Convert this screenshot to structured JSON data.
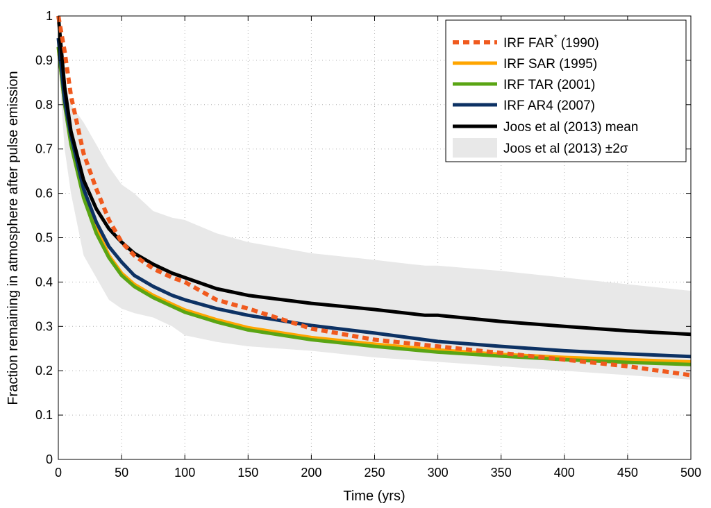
{
  "chart_data": {
    "type": "line",
    "xlabel": "Time (yrs)",
    "ylabel": "Fraction remaining in atmosphere after pulse emission",
    "xlim": [
      0,
      500
    ],
    "ylim": [
      0,
      1
    ],
    "x_ticks": [
      "0",
      "50",
      "100",
      "150",
      "200",
      "250",
      "300",
      "350",
      "400",
      "450",
      "500"
    ],
    "y_ticks": [
      "0",
      "0.1",
      "0.2",
      "0.3",
      "0.4",
      "0.5",
      "0.6",
      "0.7",
      "0.8",
      "0.9",
      "1"
    ],
    "grid": true,
    "legend_position": "top-right",
    "band": {
      "name": "Joos et al (2013) ±2σ",
      "color": "#e8e8e8",
      "upper": [
        [
          0,
          1.0
        ],
        [
          5,
          0.85
        ],
        [
          10,
          0.8
        ],
        [
          20,
          0.76
        ],
        [
          30,
          0.71
        ],
        [
          40,
          0.66
        ],
        [
          50,
          0.62
        ],
        [
          60,
          0.6
        ],
        [
          75,
          0.56
        ],
        [
          90,
          0.545
        ],
        [
          100,
          0.54
        ],
        [
          125,
          0.51
        ],
        [
          150,
          0.49
        ],
        [
          200,
          0.465
        ],
        [
          250,
          0.45
        ],
        [
          280,
          0.44
        ],
        [
          290,
          0.437
        ],
        [
          300,
          0.437
        ],
        [
          350,
          0.425
        ],
        [
          400,
          0.41
        ],
        [
          450,
          0.395
        ],
        [
          500,
          0.38
        ]
      ],
      "lower": [
        [
          0,
          0.9
        ],
        [
          5,
          0.7
        ],
        [
          10,
          0.6
        ],
        [
          20,
          0.46
        ],
        [
          30,
          0.41
        ],
        [
          40,
          0.36
        ],
        [
          50,
          0.34
        ],
        [
          60,
          0.33
        ],
        [
          75,
          0.32
        ],
        [
          90,
          0.3
        ],
        [
          100,
          0.28
        ],
        [
          125,
          0.265
        ],
        [
          150,
          0.255
        ],
        [
          200,
          0.245
        ],
        [
          250,
          0.23
        ],
        [
          300,
          0.22
        ],
        [
          350,
          0.21
        ],
        [
          400,
          0.2
        ],
        [
          450,
          0.19
        ],
        [
          500,
          0.18
        ]
      ]
    },
    "series": [
      {
        "name": "IRF FAR* (1990)",
        "legend_main": "IRF FAR",
        "legend_sup": "*",
        "legend_tail": " (1990)",
        "color": "#f05a1e",
        "dashed": true,
        "points": [
          [
            0,
            1.0
          ],
          [
            5,
            0.92
          ],
          [
            10,
            0.82
          ],
          [
            20,
            0.69
          ],
          [
            30,
            0.61
          ],
          [
            40,
            0.54
          ],
          [
            50,
            0.49
          ],
          [
            60,
            0.46
          ],
          [
            75,
            0.43
          ],
          [
            90,
            0.41
          ],
          [
            100,
            0.4
          ],
          [
            125,
            0.36
          ],
          [
            150,
            0.34
          ],
          [
            200,
            0.295
          ],
          [
            250,
            0.27
          ],
          [
            300,
            0.255
          ],
          [
            350,
            0.24
          ],
          [
            400,
            0.225
          ],
          [
            450,
            0.21
          ],
          [
            500,
            0.19
          ]
        ]
      },
      {
        "name": "IRF SAR (1995)",
        "color": "#ffa500",
        "dashed": false,
        "points": [
          [
            0,
            0.93
          ],
          [
            5,
            0.8
          ],
          [
            10,
            0.72
          ],
          [
            20,
            0.6
          ],
          [
            30,
            0.52
          ],
          [
            40,
            0.46
          ],
          [
            50,
            0.42
          ],
          [
            60,
            0.395
          ],
          [
            75,
            0.37
          ],
          [
            90,
            0.35
          ],
          [
            100,
            0.337
          ],
          [
            125,
            0.315
          ],
          [
            150,
            0.297
          ],
          [
            200,
            0.275
          ],
          [
            250,
            0.26
          ],
          [
            300,
            0.247
          ],
          [
            350,
            0.237
          ],
          [
            400,
            0.23
          ],
          [
            450,
            0.225
          ],
          [
            500,
            0.22
          ]
        ]
      },
      {
        "name": "IRF TAR (2001)",
        "color": "#5aa514",
        "dashed": false,
        "points": [
          [
            0,
            0.93
          ],
          [
            5,
            0.8
          ],
          [
            10,
            0.71
          ],
          [
            20,
            0.59
          ],
          [
            30,
            0.51
          ],
          [
            40,
            0.455
          ],
          [
            50,
            0.415
          ],
          [
            60,
            0.39
          ],
          [
            75,
            0.365
          ],
          [
            90,
            0.345
          ],
          [
            100,
            0.332
          ],
          [
            125,
            0.31
          ],
          [
            150,
            0.292
          ],
          [
            200,
            0.27
          ],
          [
            250,
            0.255
          ],
          [
            300,
            0.242
          ],
          [
            350,
            0.233
          ],
          [
            400,
            0.225
          ],
          [
            450,
            0.219
          ],
          [
            500,
            0.214
          ]
        ]
      },
      {
        "name": "IRF AR4 (2007)",
        "color": "#0d3264",
        "dashed": false,
        "points": [
          [
            0,
            0.95
          ],
          [
            5,
            0.81
          ],
          [
            10,
            0.73
          ],
          [
            20,
            0.61
          ],
          [
            30,
            0.535
          ],
          [
            40,
            0.48
          ],
          [
            50,
            0.445
          ],
          [
            60,
            0.415
          ],
          [
            75,
            0.39
          ],
          [
            90,
            0.37
          ],
          [
            100,
            0.36
          ],
          [
            125,
            0.34
          ],
          [
            150,
            0.325
          ],
          [
            200,
            0.302
          ],
          [
            250,
            0.285
          ],
          [
            300,
            0.266
          ],
          [
            350,
            0.255
          ],
          [
            400,
            0.245
          ],
          [
            450,
            0.238
          ],
          [
            500,
            0.232
          ]
        ]
      },
      {
        "name": "Joos et al (2013) mean",
        "color": "#000000",
        "dashed": false,
        "points": [
          [
            0,
            1.0
          ],
          [
            5,
            0.84
          ],
          [
            10,
            0.74
          ],
          [
            20,
            0.63
          ],
          [
            30,
            0.565
          ],
          [
            40,
            0.52
          ],
          [
            50,
            0.49
          ],
          [
            60,
            0.465
          ],
          [
            75,
            0.44
          ],
          [
            90,
            0.42
          ],
          [
            100,
            0.41
          ],
          [
            125,
            0.385
          ],
          [
            150,
            0.37
          ],
          [
            200,
            0.352
          ],
          [
            250,
            0.338
          ],
          [
            290,
            0.325
          ],
          [
            300,
            0.325
          ],
          [
            350,
            0.311
          ],
          [
            400,
            0.3
          ],
          [
            450,
            0.29
          ],
          [
            500,
            0.282
          ]
        ]
      }
    ]
  }
}
